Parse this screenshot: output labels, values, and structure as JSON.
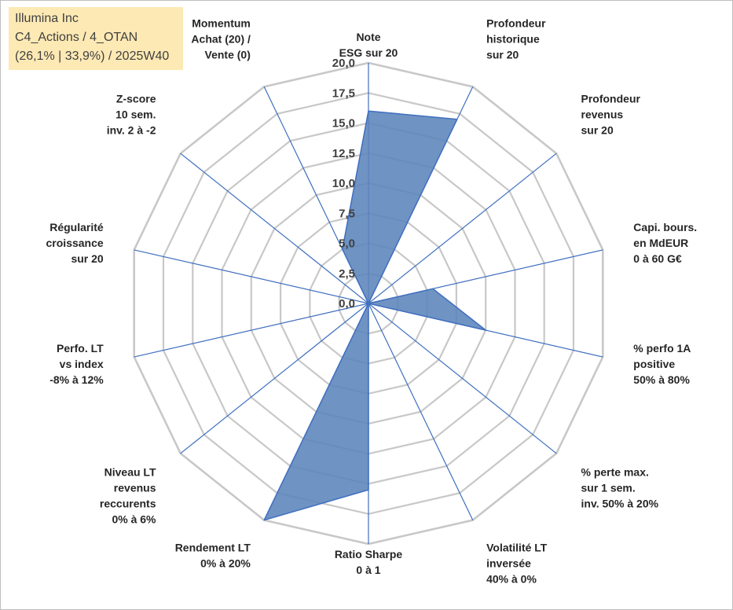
{
  "info": {
    "company": "Illumina Inc",
    "portfolio": "C4_Actions / 4_OTAN",
    "stats": "(26,1% | 33,9%) / 2025W40"
  },
  "colors": {
    "grid": "#c8c8c8",
    "spoke": "#3f6fbf",
    "fill": "#5b84bb",
    "stroke": "#3f6fbf"
  },
  "chart_data": {
    "type": "radar",
    "title": "",
    "rmin": 0,
    "rmax": 20,
    "step": 2.5,
    "tick_labels": [
      "0,0",
      "2,5",
      "5,0",
      "7,5",
      "10,0",
      "12,5",
      "15,0",
      "17,5",
      "20,0"
    ],
    "axes": [
      {
        "lines": [
          "Note",
          "ESG sur 20"
        ],
        "value": 16
      },
      {
        "lines": [
          "Profondeur",
          "historique",
          "sur 20"
        ],
        "value": 17
      },
      {
        "lines": [
          "Profondeur",
          "revenus",
          "sur 20"
        ],
        "value": 0
      },
      {
        "lines": [
          "Capi. bours.",
          "en MdEUR",
          "0 à 60 G€"
        ],
        "value": 5.5
      },
      {
        "lines": [
          "% perfo 1A",
          "positive",
          "50% à 80%"
        ],
        "value": 10
      },
      {
        "lines": [
          "% perte max.",
          "sur 1 sem.",
          "inv. 50% à 20%"
        ],
        "value": 0
      },
      {
        "lines": [
          "Volatilité LT",
          "inversée",
          "40% à 0%"
        ],
        "value": 0
      },
      {
        "lines": [
          "Ratio Sharpe",
          "0 à 1"
        ],
        "value": 15.5
      },
      {
        "lines": [
          "Rendement LT",
          "0% à 20%"
        ],
        "value": 20
      },
      {
        "lines": [
          "Niveau LT",
          "revenus",
          "reccurents",
          "0% à 6%"
        ],
        "value": 0
      },
      {
        "lines": [
          "Perfo. LT",
          "vs index",
          "-8% à 12%"
        ],
        "value": 0
      },
      {
        "lines": [
          "Régularité",
          "croissance",
          "sur 20"
        ],
        "value": 0
      },
      {
        "lines": [
          "Z-score",
          "10 sem.",
          "inv. 2 à -2"
        ],
        "value": 0
      },
      {
        "lines": [
          "Momentum",
          "Achat (20) /",
          "Vente (0)"
        ],
        "value": 5
      }
    ]
  }
}
